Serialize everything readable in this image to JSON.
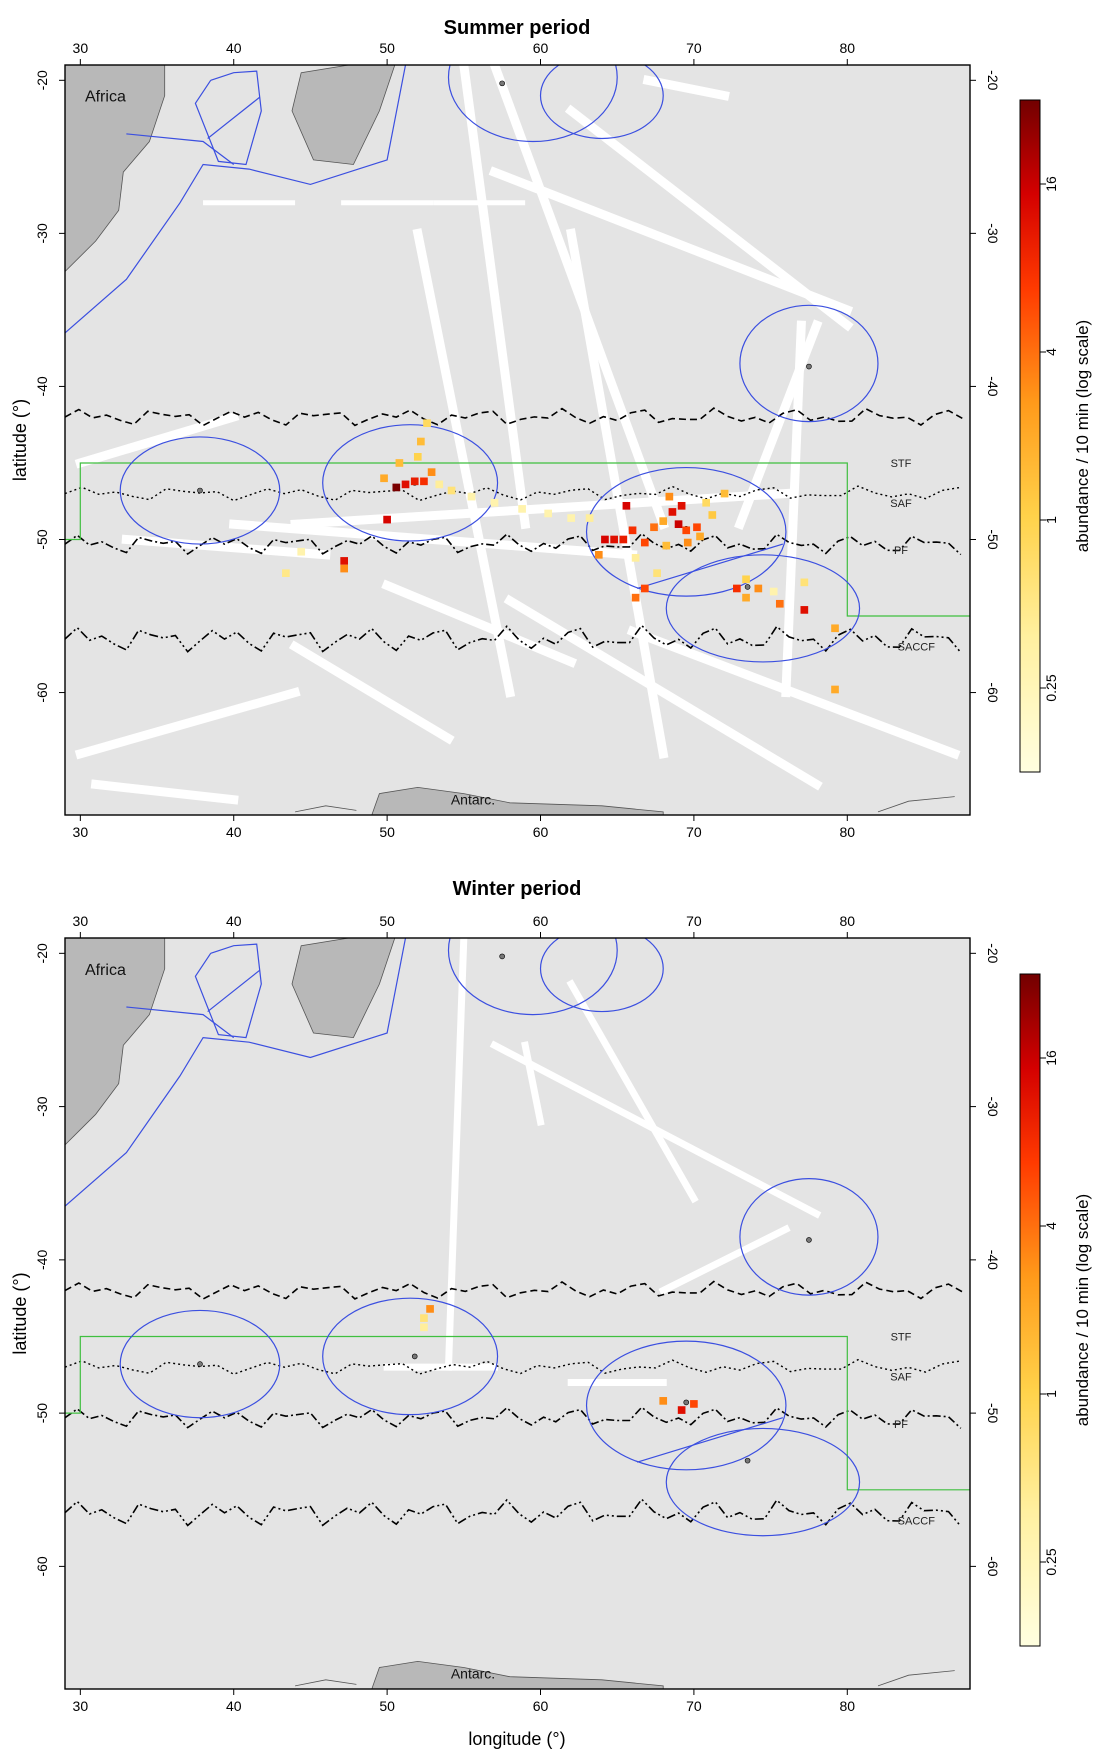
{
  "panels": [
    {
      "title": "Summer period",
      "colorbar_ticks": [
        "16",
        "4",
        "1",
        "0.25"
      ],
      "colorbar_label": "abundance / 10 min (log scale)",
      "cells": [
        {
          "lon": 50.6,
          "lat": -46.6,
          "v": 30
        },
        {
          "lon": 51.2,
          "lat": -46.4,
          "v": 12
        },
        {
          "lon": 51.8,
          "lat": -46.2,
          "v": 10
        },
        {
          "lon": 52.4,
          "lat": -46.2,
          "v": 8
        },
        {
          "lon": 52.9,
          "lat": -45.6,
          "v": 3
        },
        {
          "lon": 52.0,
          "lat": -44.6,
          "v": 1
        },
        {
          "lon": 52.2,
          "lat": -43.6,
          "v": 1.5
        },
        {
          "lon": 52.6,
          "lat": -42.4,
          "v": 0.8
        },
        {
          "lon": 49.8,
          "lat": -46.0,
          "v": 2
        },
        {
          "lon": 50.8,
          "lat": -45.0,
          "v": 1.5
        },
        {
          "lon": 53.4,
          "lat": -46.4,
          "v": 0.4
        },
        {
          "lon": 54.2,
          "lat": -46.8,
          "v": 0.6
        },
        {
          "lon": 55.5,
          "lat": -47.2,
          "v": 0.3
        },
        {
          "lon": 57.0,
          "lat": -47.6,
          "v": 0.3
        },
        {
          "lon": 58.8,
          "lat": -48.0,
          "v": 0.3
        },
        {
          "lon": 60.5,
          "lat": -48.3,
          "v": 0.3
        },
        {
          "lon": 62.0,
          "lat": -48.6,
          "v": 0.3
        },
        {
          "lon": 63.2,
          "lat": -48.6,
          "v": 0.4
        },
        {
          "lon": 50.0,
          "lat": -48.7,
          "v": 14
        },
        {
          "lon": 47.2,
          "lat": -51.4,
          "v": 12
        },
        {
          "lon": 47.2,
          "lat": -51.9,
          "v": 3
        },
        {
          "lon": 43.4,
          "lat": -52.2,
          "v": 0.5
        },
        {
          "lon": 44.4,
          "lat": -50.8,
          "v": 0.3
        },
        {
          "lon": 64.2,
          "lat": -50.0,
          "v": 14
        },
        {
          "lon": 64.8,
          "lat": -50.0,
          "v": 12
        },
        {
          "lon": 65.4,
          "lat": -50.0,
          "v": 10
        },
        {
          "lon": 66.0,
          "lat": -49.4,
          "v": 8
        },
        {
          "lon": 65.6,
          "lat": -47.8,
          "v": 14
        },
        {
          "lon": 66.8,
          "lat": -50.2,
          "v": 6
        },
        {
          "lon": 67.4,
          "lat": -49.2,
          "v": 4
        },
        {
          "lon": 68.0,
          "lat": -48.8,
          "v": 2
        },
        {
          "lon": 68.6,
          "lat": -48.2,
          "v": 12
        },
        {
          "lon": 69.0,
          "lat": -49.0,
          "v": 16
        },
        {
          "lon": 69.5,
          "lat": -49.4,
          "v": 6
        },
        {
          "lon": 68.4,
          "lat": -47.2,
          "v": 3
        },
        {
          "lon": 69.2,
          "lat": -47.8,
          "v": 12
        },
        {
          "lon": 70.2,
          "lat": -49.2,
          "v": 6
        },
        {
          "lon": 70.4,
          "lat": -49.8,
          "v": 2
        },
        {
          "lon": 69.6,
          "lat": -50.2,
          "v": 3
        },
        {
          "lon": 68.2,
          "lat": -50.4,
          "v": 1.5
        },
        {
          "lon": 63.8,
          "lat": -51.0,
          "v": 3
        },
        {
          "lon": 71.2,
          "lat": -48.4,
          "v": 1.2
        },
        {
          "lon": 72.0,
          "lat": -47.0,
          "v": 1.5
        },
        {
          "lon": 70.8,
          "lat": -47.6,
          "v": 0.8
        },
        {
          "lon": 66.2,
          "lat": -51.2,
          "v": 0.4
        },
        {
          "lon": 67.6,
          "lat": -52.2,
          "v": 0.6
        },
        {
          "lon": 66.8,
          "lat": -53.2,
          "v": 6
        },
        {
          "lon": 66.2,
          "lat": -53.8,
          "v": 4
        },
        {
          "lon": 72.8,
          "lat": -53.2,
          "v": 8
        },
        {
          "lon": 73.4,
          "lat": -53.8,
          "v": 2
        },
        {
          "lon": 74.2,
          "lat": -53.2,
          "v": 3
        },
        {
          "lon": 73.4,
          "lat": -52.6,
          "v": 1
        },
        {
          "lon": 75.6,
          "lat": -54.2,
          "v": 4
        },
        {
          "lon": 77.2,
          "lat": -54.6,
          "v": 12
        },
        {
          "lon": 77.2,
          "lat": -52.8,
          "v": 0.6
        },
        {
          "lon": 79.2,
          "lat": -55.8,
          "v": 2
        },
        {
          "lon": 79.2,
          "lat": -59.8,
          "v": 2
        },
        {
          "lon": 75.2,
          "lat": -53.4,
          "v": 0.3
        }
      ]
    },
    {
      "title": "Winter period",
      "colorbar_ticks": [
        "16",
        "4",
        "1",
        "0.25"
      ],
      "colorbar_label": "abundance / 10 min (log scale)",
      "cells": [
        {
          "lon": 52.8,
          "lat": -43.2,
          "v": 3
        },
        {
          "lon": 52.4,
          "lat": -43.8,
          "v": 0.6
        },
        {
          "lon": 52.4,
          "lat": -44.4,
          "v": 0.4
        },
        {
          "lon": 68.0,
          "lat": -49.2,
          "v": 3
        },
        {
          "lon": 69.2,
          "lat": -49.8,
          "v": 12
        },
        {
          "lon": 70.0,
          "lat": -49.4,
          "v": 6
        }
      ]
    }
  ],
  "labels": {
    "africa": "Africa",
    "antarctica": "Antarc.",
    "fronts": [
      "STF",
      "SAF",
      "PF",
      "SACCF"
    ]
  },
  "axes": {
    "xlabel": "longitude (°)",
    "ylabel": "latitude (°)",
    "x_ticks": [
      30,
      40,
      50,
      60,
      70,
      80
    ],
    "y_ticks": [
      -20,
      -30,
      -40,
      -50,
      -60
    ],
    "xlim": [
      29,
      88
    ],
    "ylim": [
      -68,
      -19
    ]
  },
  "colors": {
    "ocean": "#e4e4e4",
    "land": "#b8b8b8",
    "tracks": "#ffffff",
    "eez": "#3b4fe0",
    "box": "#3fbf3f",
    "scale_low": "#ffffd4",
    "scale_high": "#7a0000"
  }
}
